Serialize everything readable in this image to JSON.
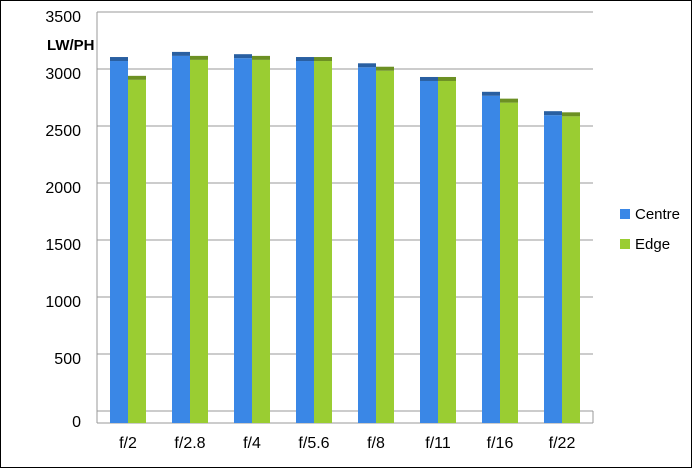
{
  "chart_data": {
    "type": "bar",
    "y_label": "LW/PH",
    "categories": [
      "f/2",
      "f/2.8",
      "f/4",
      "f/5.6",
      "f/8",
      "f/11",
      "f/16",
      "f/22"
    ],
    "series": [
      {
        "name": "Centre",
        "color": "#3a87e6",
        "values": [
          3105,
          3150,
          3130,
          3105,
          3050,
          2930,
          2800,
          2630
        ]
      },
      {
        "name": "Edge",
        "color": "#9acd32",
        "values": [
          2940,
          3115,
          3115,
          3105,
          3020,
          2930,
          2740,
          2620
        ]
      }
    ],
    "ylim": [
      0,
      3500
    ],
    "yticks": [
      0,
      500,
      1000,
      1500,
      2000,
      2500,
      3000,
      3500
    ],
    "grid": true,
    "legend": "right"
  }
}
